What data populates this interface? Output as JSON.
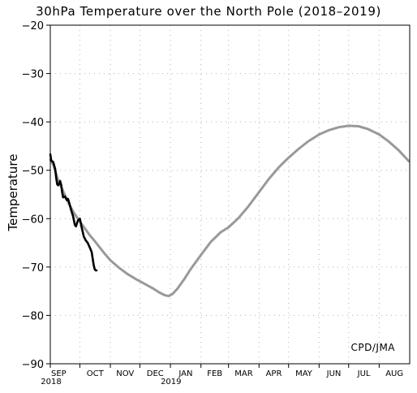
{
  "chart_data": {
    "type": "line",
    "title": "30hPa Temperature over the North Pole (2018–2019)",
    "xlabel": "",
    "ylabel": "Temperature",
    "ylim": [
      -90,
      -20
    ],
    "yticks": [
      -90,
      -80,
      -70,
      -60,
      -50,
      -40,
      -30,
      -20
    ],
    "xlim": [
      "2018-09-01",
      "2019-08-31"
    ],
    "xtick_labels": [
      "SEP",
      "OCT",
      "NOV",
      "DEC",
      "JAN",
      "FEB",
      "MAR",
      "APR",
      "MAY",
      "JUN",
      "JUL",
      "AUG"
    ],
    "xtick_dates": [
      "2018-09-01",
      "2018-10-01",
      "2018-11-01",
      "2018-12-01",
      "2019-01-01",
      "2019-02-01",
      "2019-03-01",
      "2019-04-01",
      "2019-05-01",
      "2019-06-01",
      "2019-07-01",
      "2019-08-01"
    ],
    "year_labels": [
      {
        "date": "2018-09-01",
        "text": "2018"
      },
      {
        "date": "2019-01-01",
        "text": "2019"
      }
    ],
    "grid": true,
    "annotation": "CPD/JMA",
    "series": [
      {
        "color": "#999999",
        "points": [
          [
            "2018-09-01",
            -47.8
          ],
          [
            "2018-09-04",
            -48.8
          ],
          [
            "2018-09-08",
            -51.5
          ],
          [
            "2018-09-12",
            -53.4
          ],
          [
            "2018-09-16",
            -55.2
          ],
          [
            "2018-09-20",
            -57.0
          ],
          [
            "2018-09-25",
            -58.8
          ],
          [
            "2018-10-01",
            -60.6
          ],
          [
            "2018-10-06",
            -62.0
          ],
          [
            "2018-10-11",
            -63.4
          ],
          [
            "2018-10-16",
            -64.6
          ],
          [
            "2018-10-21",
            -65.9
          ],
          [
            "2018-10-26",
            -67.2
          ],
          [
            "2018-11-01",
            -68.6
          ],
          [
            "2018-11-09",
            -70.0
          ],
          [
            "2018-11-18",
            -71.4
          ],
          [
            "2018-11-27",
            -72.5
          ],
          [
            "2018-12-06",
            -73.5
          ],
          [
            "2018-12-15",
            -74.5
          ],
          [
            "2018-12-21",
            -75.3
          ],
          [
            "2018-12-26",
            -75.8
          ],
          [
            "2018-12-30",
            -76.0
          ],
          [
            "2019-01-03",
            -75.6
          ],
          [
            "2019-01-08",
            -74.5
          ],
          [
            "2019-01-15",
            -72.5
          ],
          [
            "2019-01-22",
            -70.3
          ],
          [
            "2019-02-01",
            -67.5
          ],
          [
            "2019-02-11",
            -64.8
          ],
          [
            "2019-02-21",
            -62.8
          ],
          [
            "2019-03-01",
            -61.8
          ],
          [
            "2019-03-11",
            -59.9
          ],
          [
            "2019-03-21",
            -57.5
          ],
          [
            "2019-04-01",
            -54.5
          ],
          [
            "2019-04-11",
            -51.8
          ],
          [
            "2019-04-21",
            -49.4
          ],
          [
            "2019-05-01",
            -47.4
          ],
          [
            "2019-05-11",
            -45.6
          ],
          [
            "2019-05-21",
            -44.0
          ],
          [
            "2019-06-01",
            -42.6
          ],
          [
            "2019-06-11",
            -41.7
          ],
          [
            "2019-06-21",
            -41.1
          ],
          [
            "2019-07-01",
            -40.8
          ],
          [
            "2019-07-11",
            -40.9
          ],
          [
            "2019-07-21",
            -41.5
          ],
          [
            "2019-08-01",
            -42.6
          ],
          [
            "2019-08-11",
            -44.1
          ],
          [
            "2019-08-21",
            -45.9
          ],
          [
            "2019-08-31",
            -48.1
          ]
        ]
      },
      {
        "color": "#000000",
        "points": [
          [
            "2018-09-01",
            -46.7
          ],
          [
            "2018-09-02",
            -48.0
          ],
          [
            "2018-09-04",
            -48.3
          ],
          [
            "2018-09-06",
            -49.8
          ],
          [
            "2018-09-07",
            -51.6
          ],
          [
            "2018-09-08",
            -52.9
          ],
          [
            "2018-09-09",
            -53.1
          ],
          [
            "2018-09-10",
            -52.8
          ],
          [
            "2018-09-11",
            -52.2
          ],
          [
            "2018-09-12",
            -53.0
          ],
          [
            "2018-09-13",
            -54.5
          ],
          [
            "2018-09-14",
            -55.6
          ],
          [
            "2018-09-16",
            -55.4
          ],
          [
            "2018-09-17",
            -55.9
          ],
          [
            "2018-09-18",
            -56.2
          ],
          [
            "2018-09-19",
            -55.9
          ],
          [
            "2018-09-20",
            -56.6
          ],
          [
            "2018-09-22",
            -58.1
          ],
          [
            "2018-09-24",
            -59.4
          ],
          [
            "2018-09-26",
            -61.3
          ],
          [
            "2018-09-27",
            -61.6
          ],
          [
            "2018-09-29",
            -60.4
          ],
          [
            "2018-10-01",
            -60.0
          ],
          [
            "2018-10-03",
            -61.9
          ],
          [
            "2018-10-05",
            -63.7
          ],
          [
            "2018-10-07",
            -64.5
          ],
          [
            "2018-10-09",
            -65.0
          ],
          [
            "2018-10-11",
            -65.9
          ],
          [
            "2018-10-13",
            -66.9
          ],
          [
            "2018-10-14",
            -68.2
          ],
          [
            "2018-10-15",
            -69.5
          ],
          [
            "2018-10-16",
            -70.4
          ],
          [
            "2018-10-17",
            -70.7
          ],
          [
            "2018-10-18",
            -70.7
          ]
        ]
      }
    ]
  }
}
